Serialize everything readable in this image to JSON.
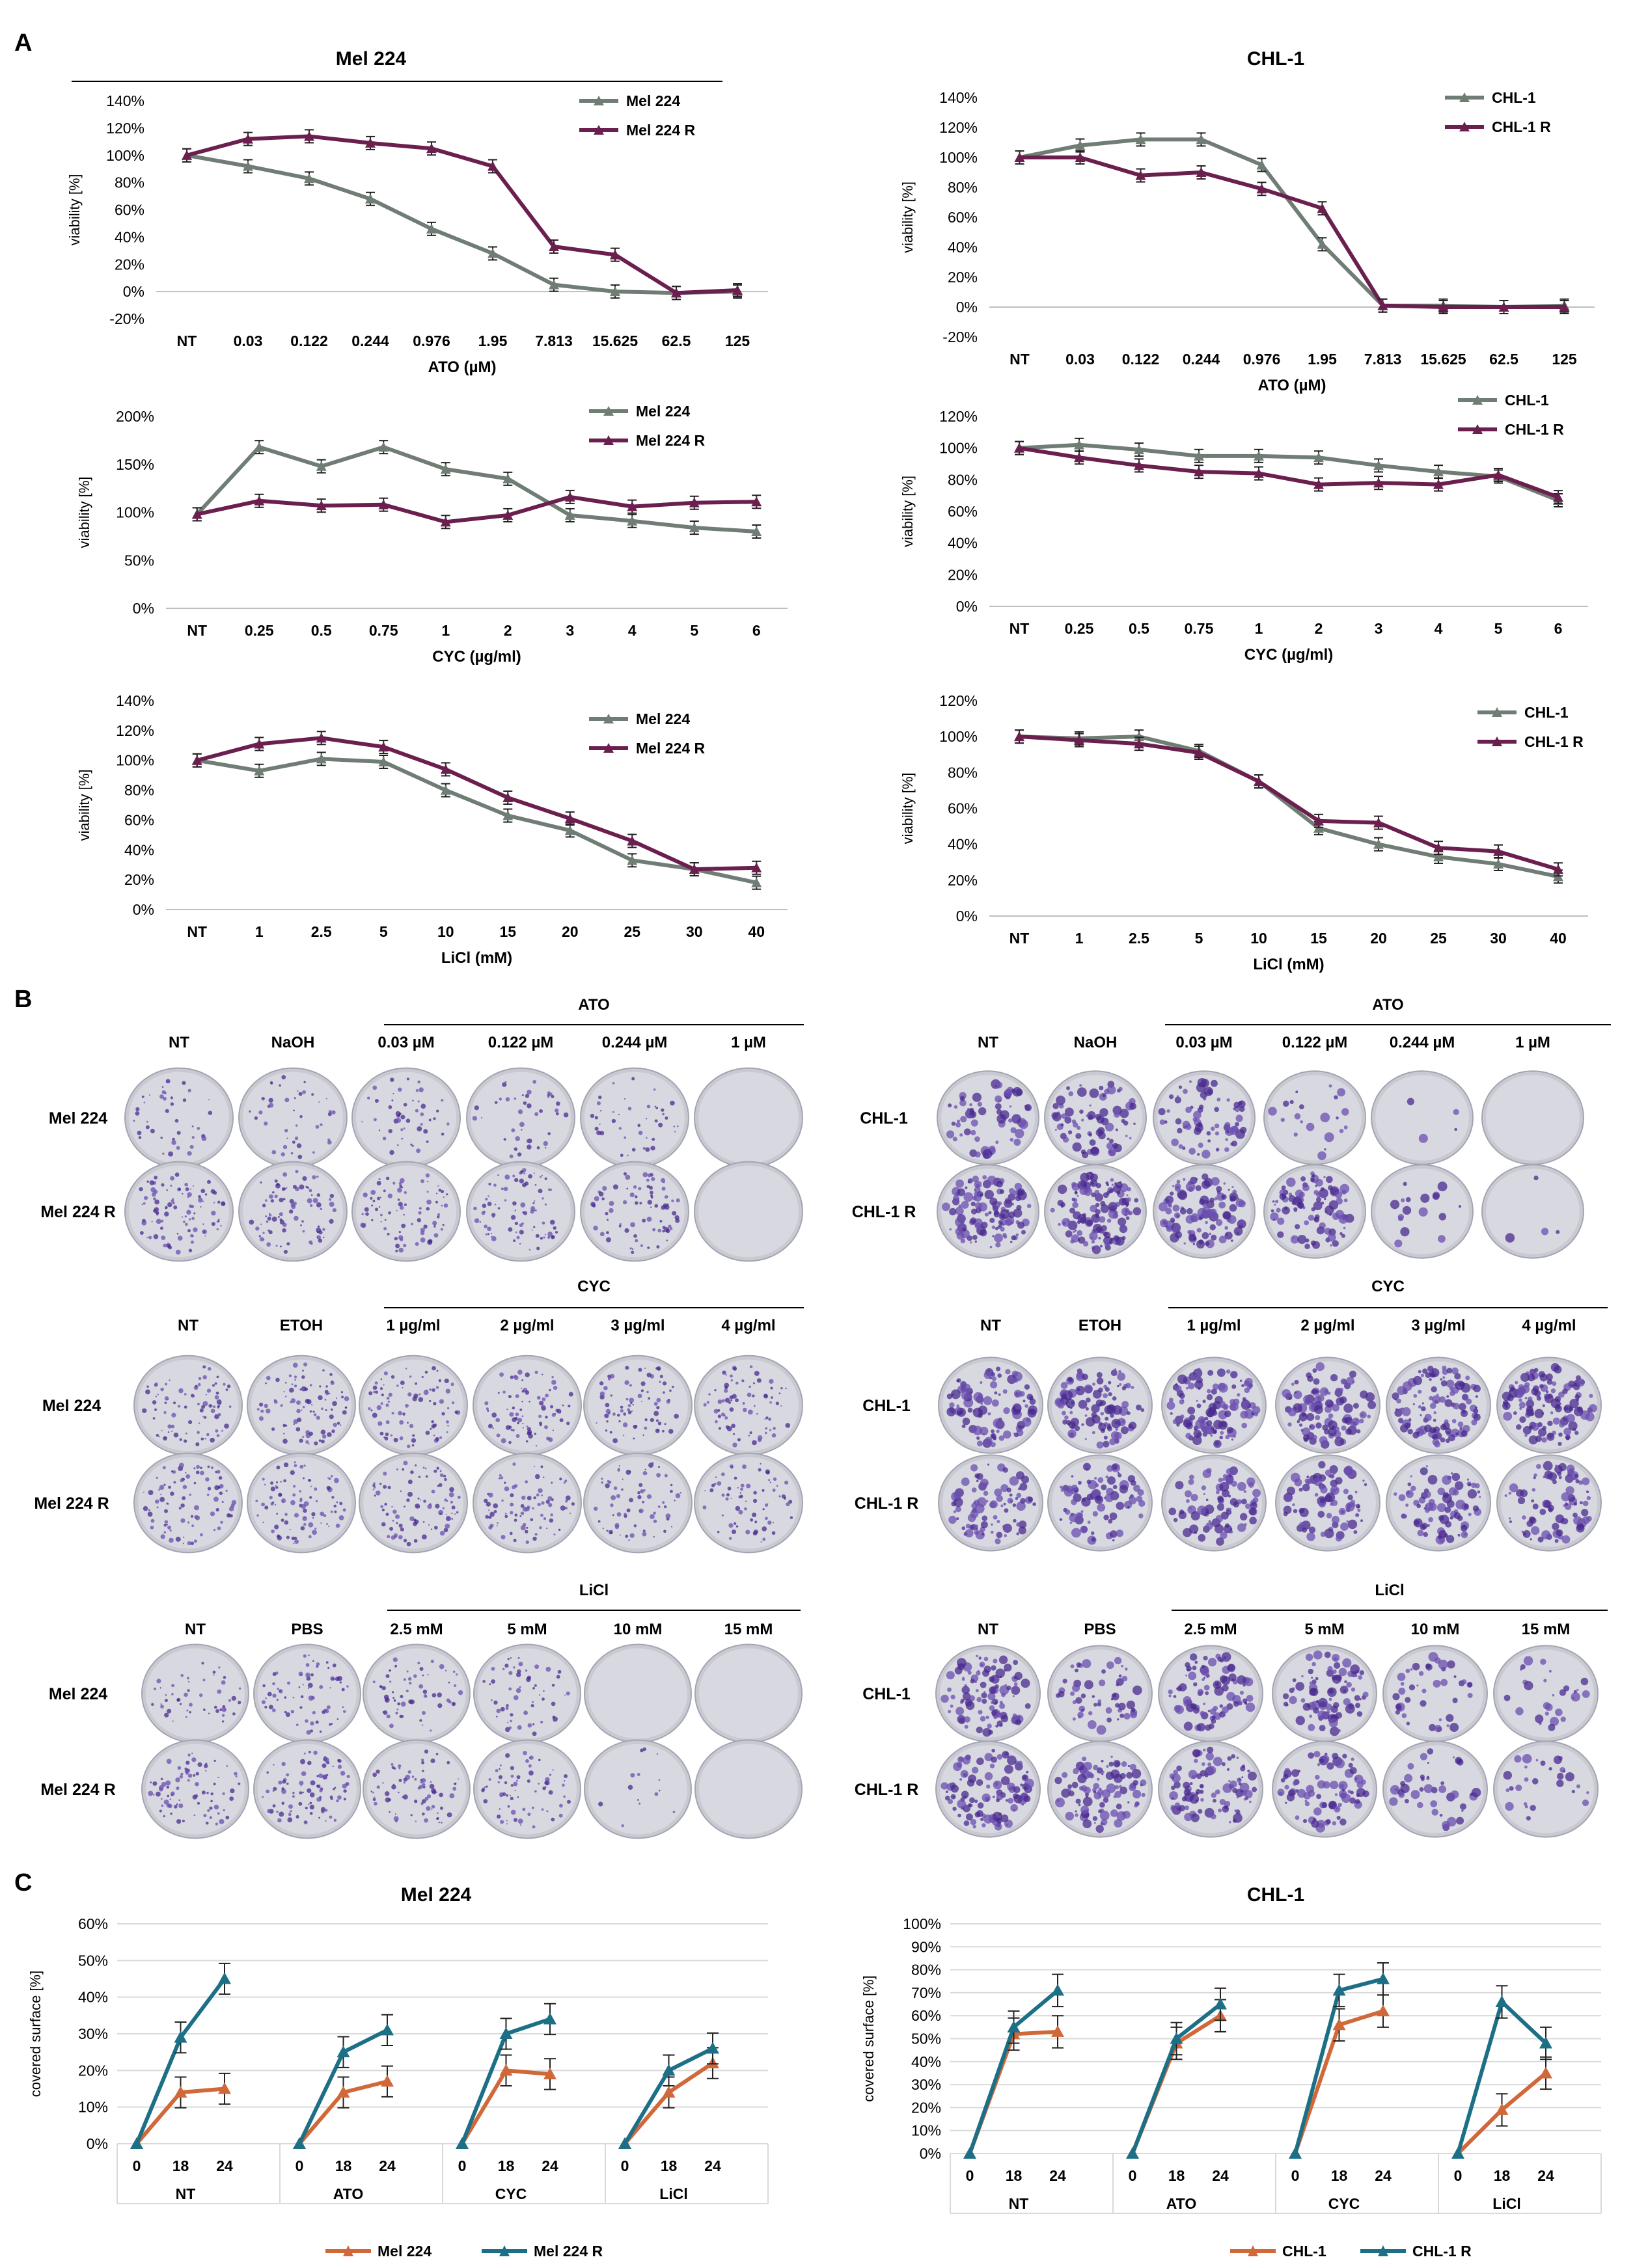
{
  "panels": {
    "a": "A",
    "b": "B",
    "c": "C"
  },
  "colors": {
    "gray": "#6F7D74",
    "purple": "#6B1F4E",
    "orange": "#D0683A",
    "teal": "#1D6F86"
  },
  "chart_data": [
    {
      "id": "a1",
      "type": "line",
      "title": "Mel 224",
      "ylabel": "viability [%]",
      "xlabel": "ATO (µM)",
      "categories": [
        "NT",
        "0.03",
        "0.122",
        "0.244",
        "0.976",
        "1.95",
        "7.813",
        "15.625",
        "62.5",
        "125"
      ],
      "yticks": [
        "-20%",
        "0%",
        "20%",
        "40%",
        "60%",
        "80%",
        "100%",
        "120%",
        "140%"
      ],
      "ylim": [
        -20,
        140
      ],
      "series": [
        {
          "name": "Mel 224",
          "color": "#6F7D74",
          "values": [
            100,
            92,
            83,
            68,
            46,
            28,
            5,
            0,
            -1,
            0
          ]
        },
        {
          "name": "Mel 224 R",
          "color": "#6B1F4E",
          "values": [
            100,
            112,
            114,
            109,
            105,
            92,
            33,
            27,
            -1,
            1
          ]
        }
      ]
    },
    {
      "id": "a2",
      "type": "line",
      "title": "CHL-1",
      "ylabel": "viability [%]",
      "xlabel": "ATO (µM)",
      "categories": [
        "NT",
        "0.03",
        "0.122",
        "0.244",
        "0.976",
        "1.95",
        "7.813",
        "15.625",
        "62.5",
        "125"
      ],
      "yticks": [
        "-20%",
        "0%",
        "20%",
        "40%",
        "60%",
        "80%",
        "100%",
        "120%",
        "140%"
      ],
      "ylim": [
        -20,
        140
      ],
      "series": [
        {
          "name": "CHL-1",
          "color": "#6F7D74",
          "values": [
            100,
            108,
            112,
            112,
            95,
            42,
            1,
            1,
            0,
            1
          ]
        },
        {
          "name": "CHL-1 R",
          "color": "#6B1F4E",
          "values": [
            100,
            100,
            88,
            90,
            79,
            66,
            1,
            0,
            0,
            0
          ]
        }
      ]
    },
    {
      "id": "a3",
      "type": "line",
      "title": "",
      "ylabel": "viability [%]",
      "xlabel": "CYC (µg/ml)",
      "categories": [
        "NT",
        "0.25",
        "0.5",
        "0.75",
        "1",
        "2",
        "3",
        "4",
        "5",
        "6"
      ],
      "yticks": [
        "0%",
        "50%",
        "100%",
        "150%",
        "200%"
      ],
      "ylim": [
        0,
        200
      ],
      "series": [
        {
          "name": "Mel 224",
          "color": "#6F7D74",
          "values": [
            98,
            168,
            148,
            168,
            145,
            135,
            97,
            91,
            84,
            80
          ]
        },
        {
          "name": "Mel 224 R",
          "color": "#6B1F4E",
          "values": [
            98,
            112,
            107,
            108,
            90,
            97,
            116,
            106,
            110,
            111
          ]
        }
      ]
    },
    {
      "id": "a4",
      "type": "line",
      "title": "",
      "ylabel": "viability [%]",
      "xlabel": "CYC (µg/ml)",
      "categories": [
        "NT",
        "0.25",
        "0.5",
        "0.75",
        "1",
        "2",
        "3",
        "4",
        "5",
        "6"
      ],
      "yticks": [
        "0%",
        "20%",
        "40%",
        "60%",
        "80%",
        "100%",
        "120%"
      ],
      "ylim": [
        0,
        120
      ],
      "series": [
        {
          "name": "CHL-1",
          "color": "#6F7D74",
          "values": [
            100,
            102,
            99,
            95,
            95,
            94,
            89,
            85,
            82,
            67
          ]
        },
        {
          "name": "CHL-1 R",
          "color": "#6B1F4E",
          "values": [
            100,
            94,
            89,
            85,
            84,
            77,
            78,
            77,
            83,
            69
          ]
        }
      ]
    },
    {
      "id": "a5",
      "type": "line",
      "title": "",
      "ylabel": "viability [%]",
      "xlabel": "LiCl (mM)",
      "categories": [
        "NT",
        "1",
        "2.5",
        "5",
        "10",
        "15",
        "20",
        "25",
        "30",
        "40"
      ],
      "yticks": [
        "0%",
        "20%",
        "40%",
        "60%",
        "80%",
        "100%",
        "120%",
        "140%"
      ],
      "ylim": [
        0,
        140
      ],
      "series": [
        {
          "name": "Mel 224",
          "color": "#6F7D74",
          "values": [
            100,
            93,
            101,
            99,
            80,
            63,
            53,
            33,
            27,
            18
          ]
        },
        {
          "name": "Mel 224 R",
          "color": "#6B1F4E",
          "values": [
            100,
            111,
            115,
            109,
            94,
            75,
            61,
            46,
            27,
            28
          ]
        }
      ]
    },
    {
      "id": "a6",
      "type": "line",
      "title": "",
      "ylabel": "viability [%]",
      "xlabel": "LiCl (mM)",
      "categories": [
        "NT",
        "1",
        "2.5",
        "5",
        "10",
        "15",
        "20",
        "25",
        "30",
        "40"
      ],
      "yticks": [
        "0%",
        "20%",
        "40%",
        "60%",
        "80%",
        "100%",
        "120%"
      ],
      "ylim": [
        0,
        120
      ],
      "series": [
        {
          "name": "CHL-1",
          "color": "#6F7D74",
          "values": [
            100,
            99,
            100,
            92,
            75,
            49,
            40,
            33,
            29,
            22
          ]
        },
        {
          "name": "CHL-1 R",
          "color": "#6B1F4E",
          "values": [
            100,
            98,
            96,
            91,
            75,
            53,
            52,
            38,
            36,
            26
          ]
        }
      ]
    },
    {
      "id": "c1",
      "type": "line",
      "title": "Mel 224",
      "ylabel": "covered surface [%]",
      "groups": [
        "NT",
        "ATO",
        "CYC",
        "LiCl"
      ],
      "timepoints": [
        "0",
        "18",
        "24"
      ],
      "yticks": [
        "0%",
        "10%",
        "20%",
        "30%",
        "40%",
        "50%",
        "60%"
      ],
      "ylim": [
        0,
        60
      ],
      "series": [
        {
          "name": "Mel 224",
          "color": "#D0683A",
          "values": [
            [
              0,
              14,
              15
            ],
            [
              0,
              14,
              17
            ],
            [
              0,
              20,
              19
            ],
            [
              0,
              14,
              22
            ]
          ]
        },
        {
          "name": "Mel 224 R",
          "color": "#1D6F86",
          "values": [
            [
              0,
              29,
              45
            ],
            [
              0,
              25,
              31
            ],
            [
              0,
              30,
              34
            ],
            [
              0,
              20,
              26
            ]
          ]
        }
      ]
    },
    {
      "id": "c2",
      "type": "line",
      "title": "CHL-1",
      "ylabel": "covered surface [%]",
      "groups": [
        "NT",
        "ATO",
        "CYC",
        "LiCl"
      ],
      "timepoints": [
        "0",
        "18",
        "24"
      ],
      "yticks": [
        "0%",
        "10%",
        "20%",
        "30%",
        "40%",
        "50%",
        "60%",
        "70%",
        "80%",
        "90%",
        "100%"
      ],
      "ylim": [
        0,
        100
      ],
      "series": [
        {
          "name": "CHL-1",
          "color": "#D0683A",
          "values": [
            [
              0,
              52,
              53
            ],
            [
              0,
              48,
              60
            ],
            [
              0,
              56,
              62
            ],
            [
              0,
              19,
              35
            ]
          ]
        },
        {
          "name": "CHL-1 R",
          "color": "#1D6F86",
          "values": [
            [
              0,
              55,
              71
            ],
            [
              0,
              50,
              65
            ],
            [
              0,
              71,
              76
            ],
            [
              0,
              66,
              48
            ]
          ]
        }
      ]
    }
  ],
  "colony_assay": {
    "mel": {
      "rows": [
        "Mel 224",
        "Mel 224 R"
      ],
      "ato": {
        "group": "ATO",
        "cols": [
          "NT",
          "NaOH",
          "0.03 µM",
          "0.122 µM",
          "0.244 µM",
          "1 µM"
        ]
      },
      "cyc": {
        "group": "CYC",
        "cols": [
          "NT",
          "ETOH",
          "1 µg/ml",
          "2 µg/ml",
          "3 µg/ml",
          "4 µg/ml"
        ]
      },
      "licl": {
        "group": "LiCl",
        "cols": [
          "NT",
          "PBS",
          "2.5 mM",
          "5 mM",
          "10 mM",
          "15 mM"
        ]
      }
    },
    "chl": {
      "rows": [
        "CHL-1",
        "CHL-1 R"
      ],
      "ato": {
        "group": "ATO",
        "cols": [
          "NT",
          "NaOH",
          "0.03 µM",
          "0.122 µM",
          "0.244 µM",
          "1 µM"
        ]
      },
      "cyc": {
        "group": "CYC",
        "cols": [
          "NT",
          "ETOH",
          "1 µg/ml",
          "2 µg/ml",
          "3 µg/ml",
          "4 µg/ml"
        ]
      },
      "licl": {
        "group": "LiCl",
        "cols": [
          "NT",
          "PBS",
          "2.5 mM",
          "5 mM",
          "10 mM",
          "15 mM"
        ]
      }
    },
    "density": {
      "mel_ato": [
        [
          0.3,
          0.3,
          0.35,
          0.3,
          0.3,
          0
        ],
        [
          0.7,
          0.6,
          0.6,
          0.6,
          0.55,
          0
        ]
      ],
      "chl_ato": [
        [
          0.45,
          0.55,
          0.5,
          0.15,
          0.03,
          0
        ],
        [
          0.85,
          0.9,
          0.8,
          0.7,
          0.12,
          0.03
        ]
      ],
      "mel_cyc": [
        [
          0.6,
          0.65,
          0.6,
          0.6,
          0.55,
          0.55
        ],
        [
          0.65,
          0.65,
          0.65,
          0.6,
          0.5,
          0.5
        ]
      ],
      "chl_cyc": [
        [
          0.75,
          0.8,
          0.85,
          0.8,
          0.85,
          0.85
        ],
        [
          0.6,
          0.6,
          0.6,
          0.6,
          0.6,
          0.6
        ]
      ],
      "mel_licl": [
        [
          0.35,
          0.5,
          0.45,
          0.4,
          0,
          0
        ],
        [
          0.6,
          0.65,
          0.55,
          0.5,
          0.1,
          0
        ]
      ],
      "chl_licl": [
        [
          0.7,
          0.4,
          0.65,
          0.6,
          0.3,
          0.2
        ],
        [
          0.75,
          0.7,
          0.7,
          0.6,
          0.3,
          0.2
        ]
      ]
    }
  }
}
